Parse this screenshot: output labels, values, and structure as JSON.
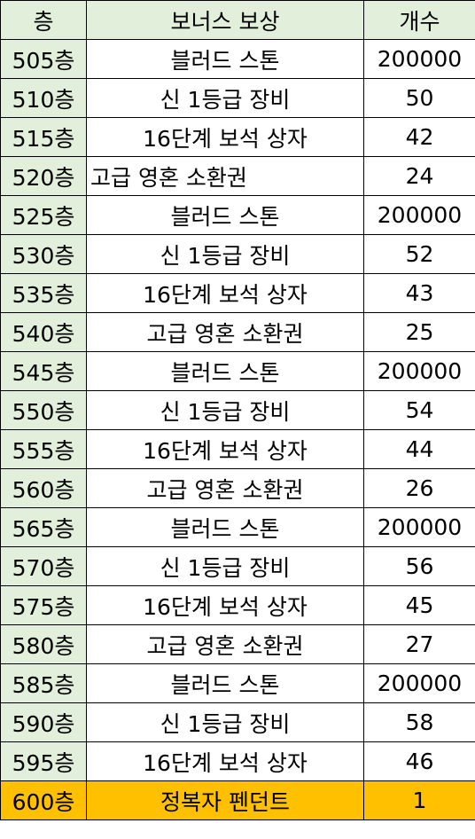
{
  "colors": {
    "header_bg": "#e2efda",
    "floor_bg": "#e2efda",
    "final_row_bg": "#ffc000",
    "border": "#000000"
  },
  "headers": {
    "floor": "층",
    "reward": "보너스 보상",
    "count": "개수"
  },
  "rows": [
    {
      "floor": "505층",
      "reward": "블러드 스톤",
      "count": "200000"
    },
    {
      "floor": "510층",
      "reward": "신 1등급 장비",
      "count": "50"
    },
    {
      "floor": "515층",
      "reward": "16단계 보석 상자",
      "count": "42"
    },
    {
      "floor": "520층",
      "reward": "고급 영혼 소환권",
      "count": "24"
    },
    {
      "floor": "525층",
      "reward": "블러드 스톤",
      "count": "200000"
    },
    {
      "floor": "530층",
      "reward": "신 1등급 장비",
      "count": "52"
    },
    {
      "floor": "535층",
      "reward": "16단계 보석 상자",
      "count": "43"
    },
    {
      "floor": "540층",
      "reward": "고급 영혼 소환권",
      "count": "25"
    },
    {
      "floor": "545층",
      "reward": "블러드 스톤",
      "count": "200000"
    },
    {
      "floor": "550층",
      "reward": "신 1등급 장비",
      "count": "54"
    },
    {
      "floor": "555층",
      "reward": "16단계 보석 상자",
      "count": "44"
    },
    {
      "floor": "560층",
      "reward": "고급 영혼 소환권",
      "count": "26"
    },
    {
      "floor": "565층",
      "reward": "블러드 스톤",
      "count": "200000"
    },
    {
      "floor": "570층",
      "reward": "신 1등급 장비",
      "count": "56"
    },
    {
      "floor": "575층",
      "reward": "16단계 보석 상자",
      "count": "45"
    },
    {
      "floor": "580층",
      "reward": "고급 영혼 소환권",
      "count": "27"
    },
    {
      "floor": "585층",
      "reward": "블러드 스톤",
      "count": "200000"
    },
    {
      "floor": "590층",
      "reward": "신 1등급 장비",
      "count": "58"
    },
    {
      "floor": "595층",
      "reward": "16단계 보석 상자",
      "count": "46"
    },
    {
      "floor": "600층",
      "reward": "정복자 펜던트",
      "count": "1"
    }
  ]
}
